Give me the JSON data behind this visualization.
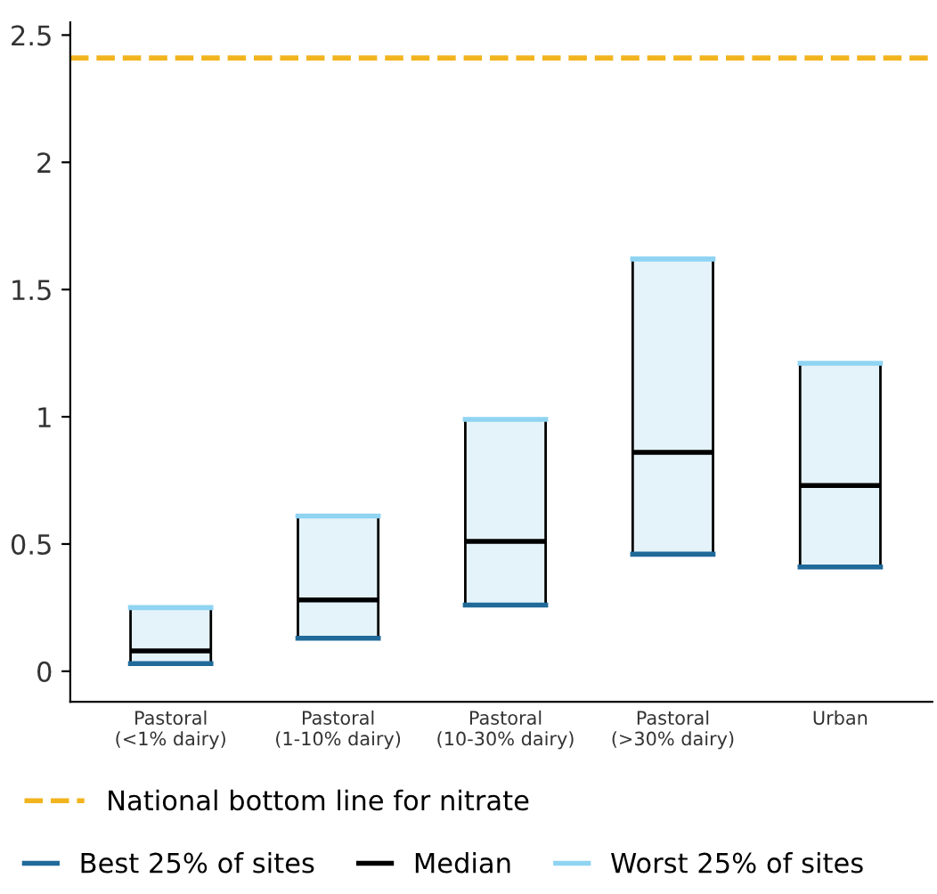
{
  "chart_data": {
    "type": "box",
    "categories": [
      "Pastoral\n(<1% dairy)",
      "Pastoral\n(1-10% dairy)",
      "Pastoral\n(10-30% dairy)",
      "Pastoral\n(>30% dairy)",
      "Urban"
    ],
    "boxes": [
      {
        "low": 0.03,
        "q1": 0.03,
        "median": 0.08,
        "q3": 0.25,
        "high": 0.25
      },
      {
        "low": 0.13,
        "q1": 0.13,
        "median": 0.28,
        "q3": 0.61,
        "high": 0.61
      },
      {
        "low": 0.26,
        "q1": 0.26,
        "median": 0.51,
        "q3": 0.99,
        "high": 0.99
      },
      {
        "low": 0.46,
        "q1": 0.46,
        "median": 0.86,
        "q3": 1.62,
        "high": 1.62
      },
      {
        "low": 0.41,
        "q1": 0.41,
        "median": 0.73,
        "q3": 1.21,
        "high": 1.21
      }
    ],
    "color": "#e4f3fa",
    "series": [
      {
        "name": "Best 25% of sites",
        "color": "#1f6a99",
        "values": [
          null,
          null,
          null,
          null,
          null
        ]
      },
      {
        "name": "Median",
        "color": "#000000",
        "values": [
          null,
          null,
          null,
          null,
          null
        ]
      },
      {
        "name": "Worst 25% of sites",
        "color": "#8fd4f2",
        "values": [
          null,
          null,
          null,
          null,
          null
        ]
      }
    ],
    "ylim": [
      -0.12,
      2.55
    ],
    "yticks": [
      0,
      0.5,
      1,
      1.5,
      2,
      2.5
    ],
    "ref_lines": [
      {
        "axis": "y",
        "value": 2.41,
        "label": "National bottom line for nitrate",
        "color": "#f2b41e",
        "line_style": "dashed"
      }
    ],
    "grid": false,
    "legend": "bottom"
  }
}
